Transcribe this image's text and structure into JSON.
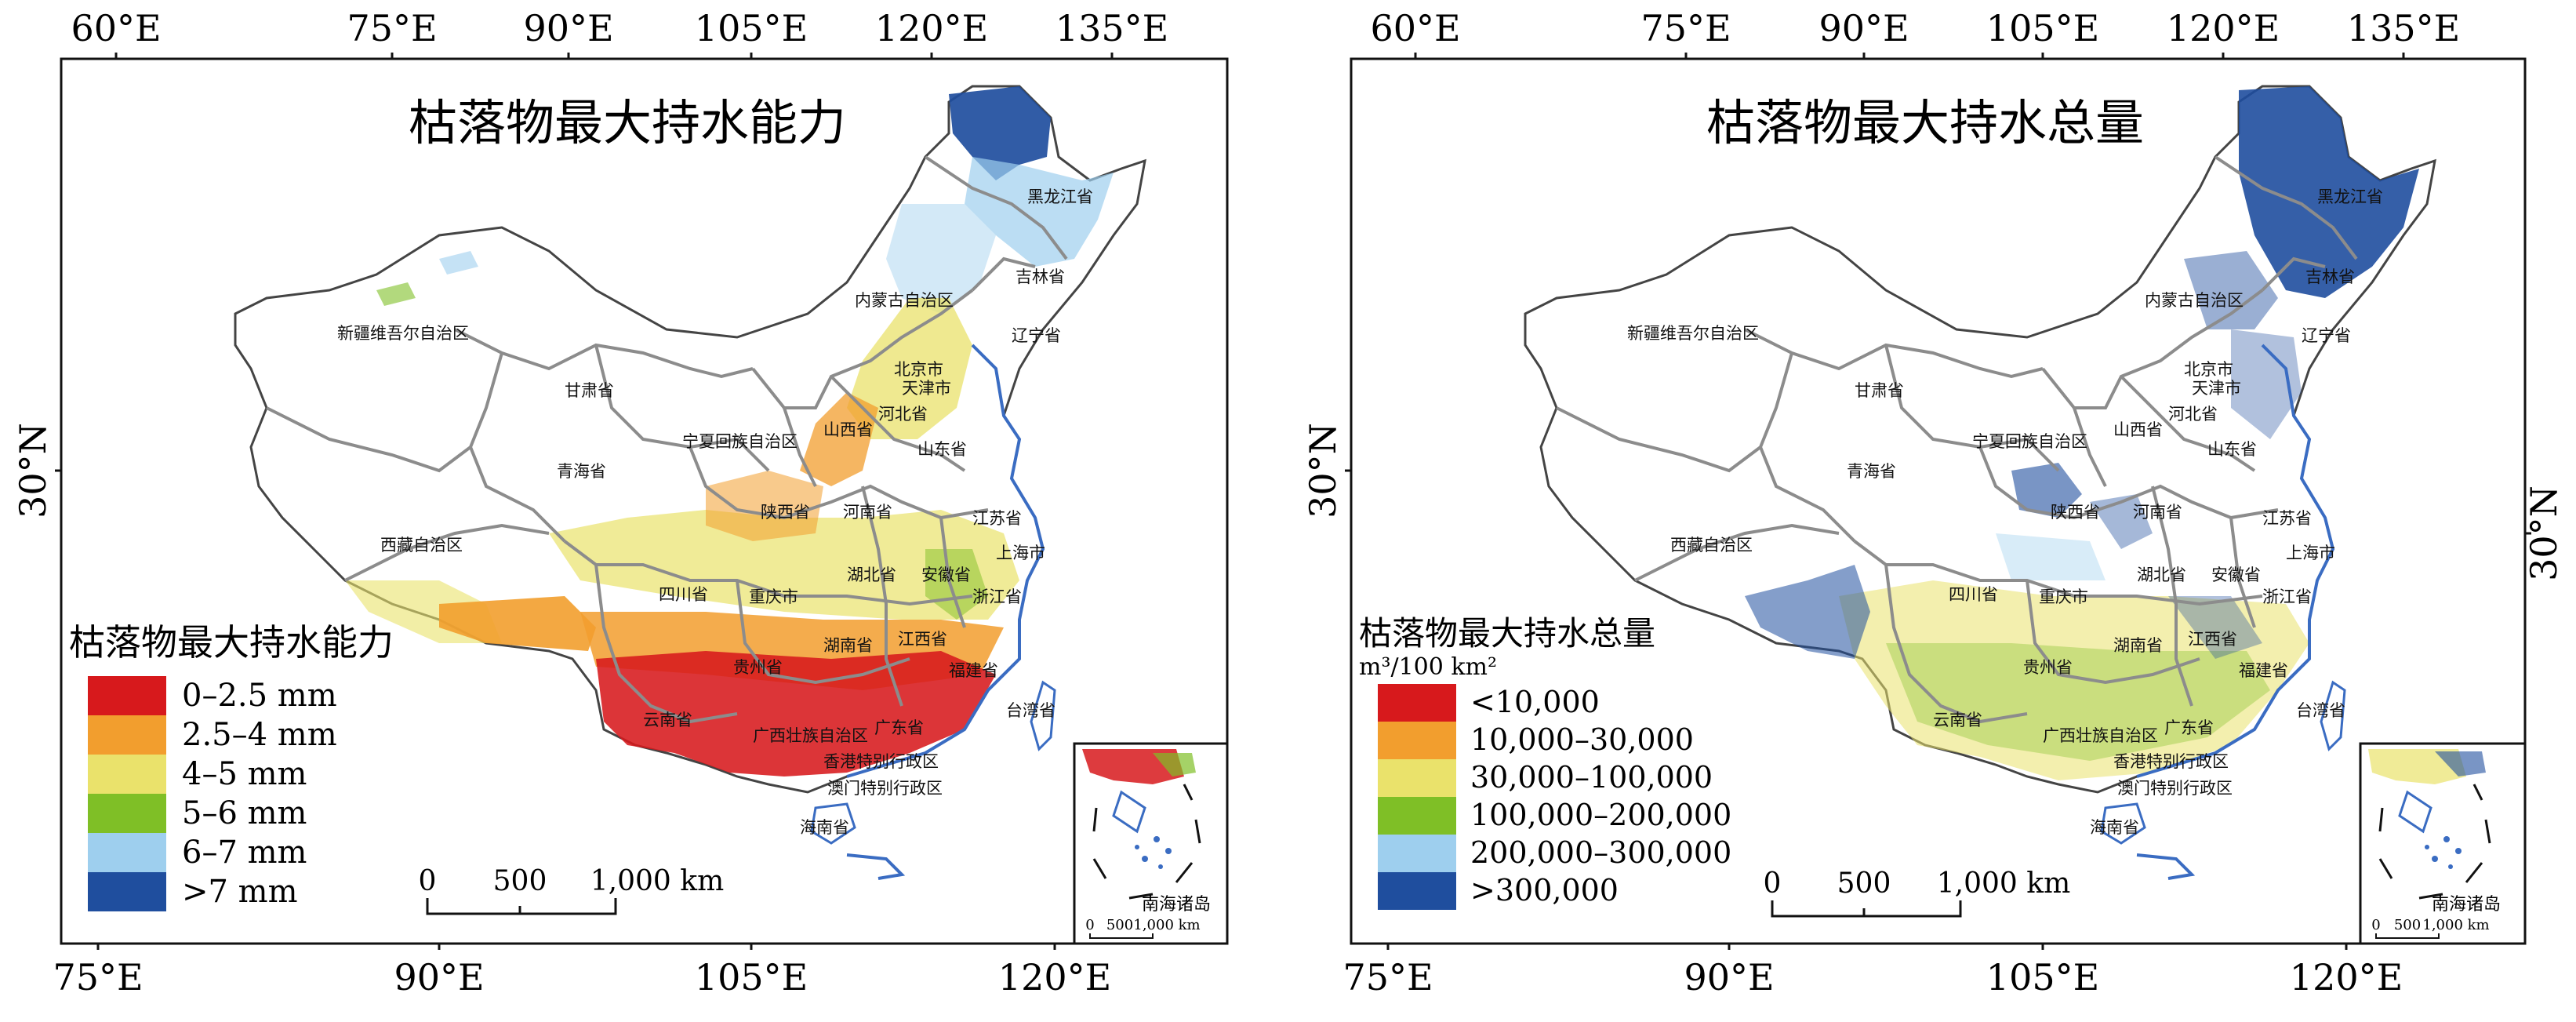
{
  "panels": [
    {
      "id": "left",
      "title": "枯落物最大持水能力",
      "lon_top_ticks": [
        "60°E",
        "75°E",
        "90°E",
        "105°E",
        "120°E",
        "135°E"
      ],
      "lon_bottom_ticks": [
        "75°E",
        "90°E",
        "105°E",
        "120°E"
      ],
      "lat_left_ticks": [
        "30°N"
      ],
      "lat_right_ticks": [],
      "legend": {
        "title": "枯落物最大持水能力",
        "unit": "",
        "items": [
          {
            "label": "0–2.5 mm",
            "color": "#d7191c"
          },
          {
            "label": "2.5–4 mm",
            "color": "#f29e2e"
          },
          {
            "label": "4–5 mm",
            "color": "#eae26b"
          },
          {
            "label": "5–6 mm",
            "color": "#7fbf26"
          },
          {
            "label": "6–7 mm",
            "color": "#9ecfee"
          },
          {
            "label": ">7 mm",
            "color": "#1f4e9e"
          }
        ]
      },
      "scalebar": {
        "ticks": [
          "0",
          "500",
          "1,000 km"
        ]
      },
      "provinces": [
        "黑龙江省",
        "吉林省",
        "内蒙古自治区",
        "辽宁省",
        "新疆维吾尔自治区",
        "北京市",
        "天津市",
        "甘肃省",
        "河北省",
        "山西省",
        "宁夏回族自治区",
        "山东省",
        "青海省",
        "陕西省",
        "河南省",
        "江苏省",
        "西藏自治区",
        "上海市",
        "湖北省",
        "安徽省",
        "四川省",
        "重庆市",
        "浙江省",
        "江西省",
        "湖南省",
        "贵州省",
        "福建省",
        "台湾省",
        "云南省",
        "广西壮族自治区",
        "广东省",
        "香港特别行政区",
        "澳门特别行政区",
        "海南省"
      ],
      "inset": {
        "label": "南海诸岛",
        "scale_ticks": [
          "0",
          "500",
          "1,000 km"
        ]
      }
    },
    {
      "id": "right",
      "title": "枯落物最大持水总量",
      "lon_top_ticks": [
        "60°E",
        "75°E",
        "90°E",
        "105°E",
        "120°E",
        "135°E"
      ],
      "lon_bottom_ticks": [
        "75°E",
        "90°E",
        "105°E",
        "120°E"
      ],
      "lat_left_ticks": [
        "30°N"
      ],
      "lat_right_ticks": [
        "30°N"
      ],
      "legend": {
        "title": "枯落物最大持水总量",
        "unit": "m³/100 km²",
        "items": [
          {
            "label": "<10,000",
            "color": "#d7191c"
          },
          {
            "label": "10,000–30,000",
            "color": "#f29e2e"
          },
          {
            "label": "30,000–100,000",
            "color": "#eae26b"
          },
          {
            "label": "100,000–200,000",
            "color": "#7fbf26"
          },
          {
            "label": "200,000–300,000",
            "color": "#9ecfee"
          },
          {
            "label": ">300,000",
            "color": "#1f4e9e"
          }
        ]
      },
      "scalebar": {
        "ticks": [
          "0",
          "500",
          "1,000 km"
        ]
      },
      "provinces": [
        "黑龙江省",
        "吉林省",
        "内蒙古自治区",
        "辽宁省",
        "新疆维吾尔自治区",
        "北京市",
        "天津市",
        "甘肃省",
        "河北省",
        "山西省",
        "宁夏回族自治区",
        "山东省",
        "青海省",
        "陕西省",
        "河南省",
        "江苏省",
        "西藏自治区",
        "上海市",
        "湖北省",
        "安徽省",
        "四川省",
        "重庆市",
        "浙江省",
        "江西省",
        "湖南省",
        "贵州省",
        "福建省",
        "台湾省",
        "云南省",
        "广西壮族自治区",
        "广东省",
        "香港特别行政区",
        "澳门特别行政区",
        "海南省"
      ],
      "inset": {
        "label": "南海诸岛",
        "scale_ticks": [
          "0",
          "500",
          "1,000 km"
        ]
      }
    }
  ],
  "colors": {
    "frame": "#111111",
    "province_border": "#8c8c8c",
    "coast": "#3a6cc2",
    "land_background": "#ffffff"
  }
}
